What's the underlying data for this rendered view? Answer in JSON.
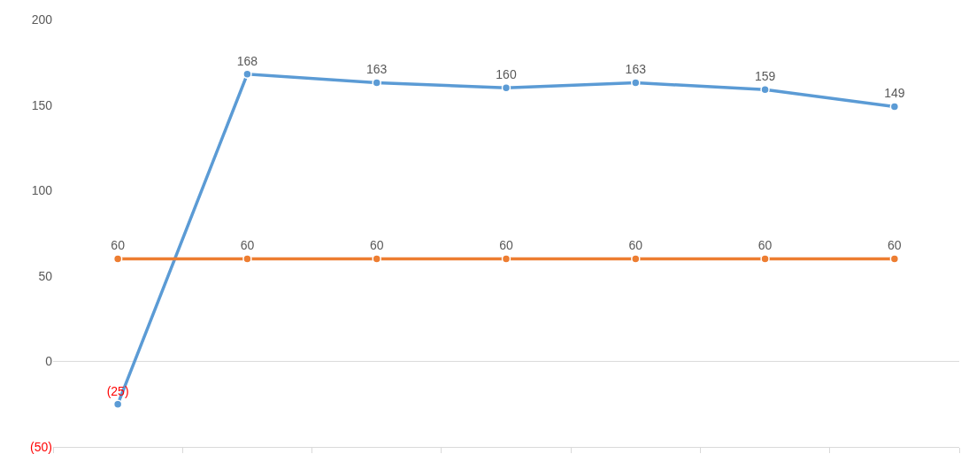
{
  "chart_data": {
    "type": "line",
    "categories": [
      null,
      null,
      null,
      null,
      null,
      null,
      null
    ],
    "series": [
      {
        "color": "#5b9bd5",
        "values": [
          -25,
          168,
          163,
          160,
          163,
          159,
          149
        ],
        "value_labels": [
          "(25)",
          "168",
          "163",
          "160",
          "163",
          "159",
          "149"
        ]
      },
      {
        "color": "#ed7d31",
        "values": [
          60,
          60,
          60,
          60,
          60,
          60,
          60
        ],
        "value_labels": [
          "60",
          "60",
          "60",
          "60",
          "60",
          "60",
          "60"
        ]
      }
    ],
    "ylim": [
      -50,
      200
    ],
    "yticks": [
      {
        "value": -50,
        "label": "(50)"
      },
      0,
      50,
      100,
      150,
      200
    ],
    "ref_lines": [
      {
        "axis": "y",
        "value": 0,
        "color": "#d9d9d9"
      }
    ],
    "grid": false,
    "marker": "circle",
    "line_style": "solid"
  }
}
